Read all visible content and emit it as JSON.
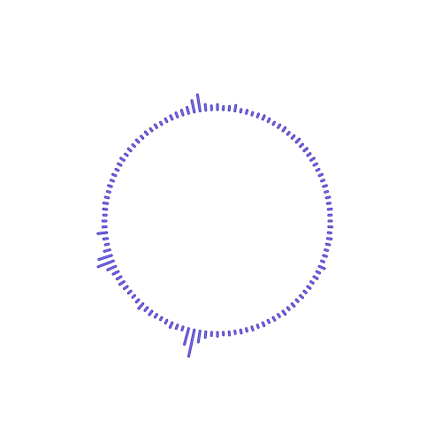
{
  "visualizer": {
    "style": "circular-audio-spectrum",
    "colors": {
      "bar_stroke": "#3b2bb8",
      "bar_fill": "#8a7cf0",
      "background": "#ffffff"
    },
    "bar_count": 120,
    "levels": [
      0.1,
      0.12,
      0.1,
      0.14,
      0.12,
      0.1,
      0.12,
      0.1,
      0.2,
      0.12,
      0.14,
      0.1,
      0.12,
      0.1,
      0.12,
      0.1,
      0.12,
      0.1,
      0.14,
      0.1,
      0.12,
      0.1,
      0.12,
      0.1,
      0.12,
      0.1,
      0.12,
      0.1,
      0.12,
      0.1,
      0.14,
      0.12,
      0.2,
      0.38,
      0.9,
      0.55,
      0.12,
      0.14,
      0.18,
      0.12,
      0.1,
      0.12,
      0.16,
      0.14,
      0.22,
      0.12,
      0.1,
      0.12,
      0.14,
      0.18,
      0.16,
      0.2,
      0.3,
      0.55,
      0.45,
      0.2,
      0.12,
      0.14,
      0.3,
      0.12,
      0.12,
      0.1,
      0.12,
      0.14,
      0.12,
      0.1,
      0.12,
      0.1,
      0.12,
      0.1,
      0.12,
      0.14,
      0.1,
      0.12,
      0.1,
      0.12,
      0.1,
      0.12,
      0.1,
      0.12,
      0.1,
      0.12,
      0.14,
      0.16,
      0.18,
      0.22,
      0.4,
      0.55,
      0.2,
      0.14,
      0.18,
      0.12,
      0.14,
      0.2,
      0.1,
      0.12,
      0.1,
      0.12,
      0.14,
      0.12,
      0.1,
      0.12,
      0.14,
      0.1,
      0.12,
      0.16,
      0.12,
      0.14,
      0.12,
      0.14,
      0.12,
      0.1,
      0.12,
      0.1,
      0.12,
      0.1,
      0.12,
      0.1,
      0.12,
      0.1
    ]
  }
}
